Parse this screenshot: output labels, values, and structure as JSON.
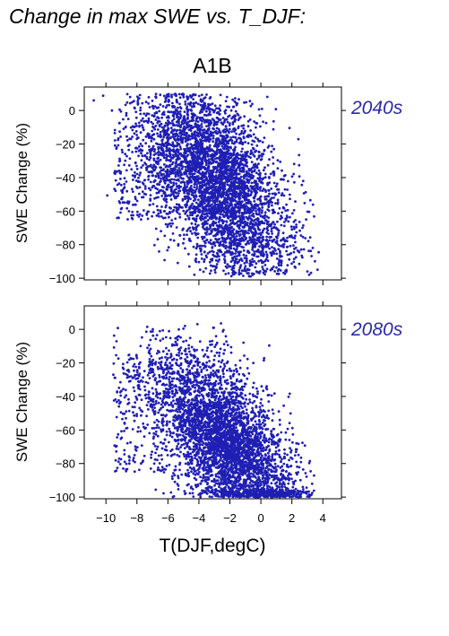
{
  "figure": {
    "heading": "Change in max SWE vs. T_DJF:",
    "scenario": "A1B"
  },
  "colors": {
    "points": "#1f1fb4",
    "axis": "#000000",
    "label_period": "#2a2aa8"
  },
  "chart_data": [
    {
      "type": "scatter",
      "period_label": "2040s",
      "ylabel": "SWE Change (%)",
      "xlabel": "",
      "xlim": [
        -11.4,
        5.2
      ],
      "ylim": [
        -101,
        14
      ],
      "xticks": [
        -10,
        -8,
        -6,
        -4,
        -2,
        0,
        2,
        4
      ],
      "yticks": [
        0,
        -20,
        -40,
        -60,
        -80,
        -100
      ],
      "show_x_tick_labels": false,
      "grid": false,
      "cloud_description": {
        "n_points": 4300,
        "x_range": [
          -11.3,
          3.8
        ],
        "y_range": [
          -99,
          10
        ],
        "trend": "negative",
        "centroid": [
          -2.5,
          -45
        ]
      }
    },
    {
      "type": "scatter",
      "period_label": "2080s",
      "ylabel": "SWE Change (%)",
      "xlabel": "T(DJF,degC)",
      "xlim": [
        -11.4,
        5.2
      ],
      "ylim": [
        -101,
        14
      ],
      "xticks": [
        -10,
        -8,
        -6,
        -4,
        -2,
        0,
        2,
        4
      ],
      "xtick_labels": [
        "−10",
        "−8",
        "−6",
        "−4",
        "−2",
        "0",
        "2",
        "4"
      ],
      "yticks": [
        0,
        -20,
        -40,
        -60,
        -80,
        -100
      ],
      "show_x_tick_labels": true,
      "grid": false,
      "cloud_description": {
        "n_points": 4300,
        "x_range": [
          -11.3,
          3.5
        ],
        "y_range": [
          -100,
          4
        ],
        "trend": "negative",
        "centroid": [
          -2,
          -72
        ]
      }
    }
  ]
}
